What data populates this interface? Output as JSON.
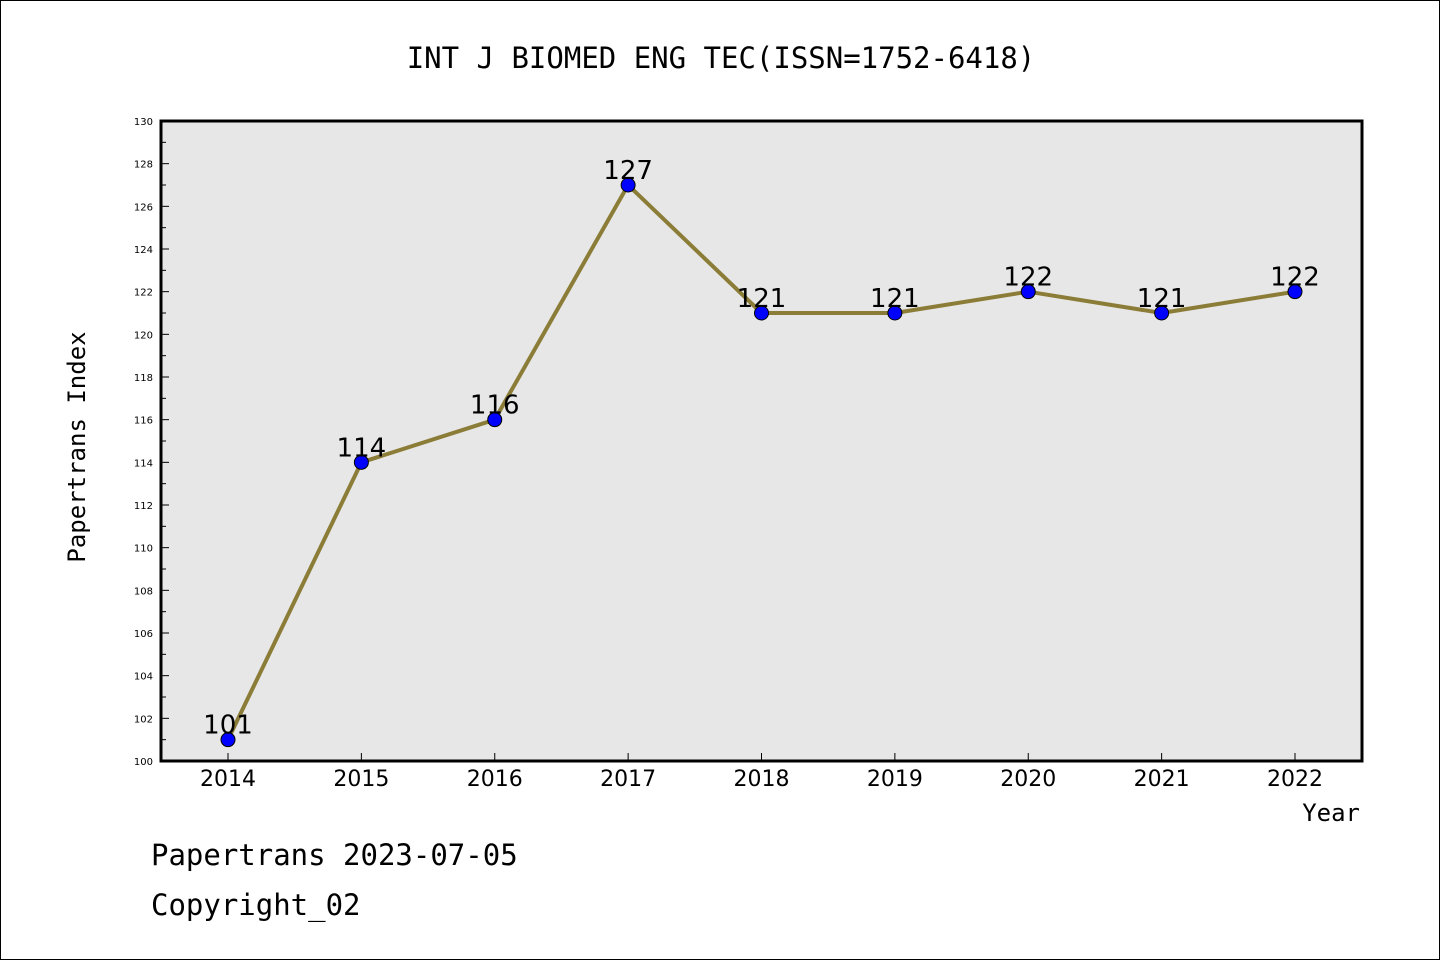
{
  "chart_data": {
    "type": "line",
    "title": "INT J BIOMED ENG TEC(ISSN=1752-6418)",
    "xlabel": "Year",
    "ylabel": "Papertrans Index",
    "x": [
      "2014",
      "2015",
      "2016",
      "2017",
      "2018",
      "2019",
      "2020",
      "2021",
      "2022"
    ],
    "series": [
      {
        "values": [
          101,
          114,
          116,
          127,
          121,
          121,
          122,
          121,
          122
        ]
      }
    ],
    "ylim": [
      100,
      130
    ],
    "ymajor_step": 2,
    "grid": false,
    "legend": "none",
    "plot_background": "#e7e7e7",
    "line_color": "#8b7d37",
    "marker_color": "#0000ff"
  },
  "footer": {
    "line1": "Papertrans 2023-07-05",
    "line2": "Copyright_02"
  }
}
